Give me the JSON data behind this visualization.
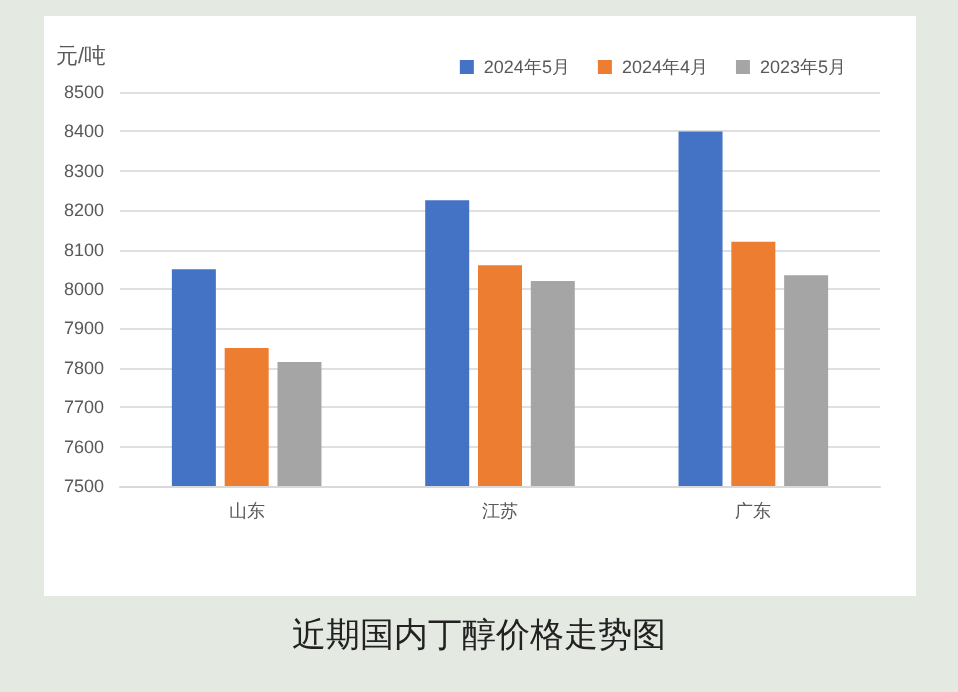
{
  "chart_data": {
    "type": "bar",
    "title": "近期国内丁醇价格走势图",
    "ylabel": "元/吨",
    "categories": [
      "山东",
      "江苏",
      "广东"
    ],
    "series": [
      {
        "name": "2024年5月",
        "color": "#4472c4",
        "values": [
          8050,
          8225,
          8400
        ]
      },
      {
        "name": "2024年4月",
        "color": "#ed7d31",
        "values": [
          7850,
          8060,
          8120
        ]
      },
      {
        "name": "2023年5月",
        "color": "#a5a5a5",
        "values": [
          7815,
          8020,
          8035
        ]
      }
    ],
    "ylim": [
      7500,
      8500
    ],
    "yticks": [
      7500,
      7600,
      7700,
      7800,
      7900,
      8000,
      8100,
      8200,
      8300,
      8400,
      8500
    ],
    "grid": "y",
    "legend": "top right"
  }
}
